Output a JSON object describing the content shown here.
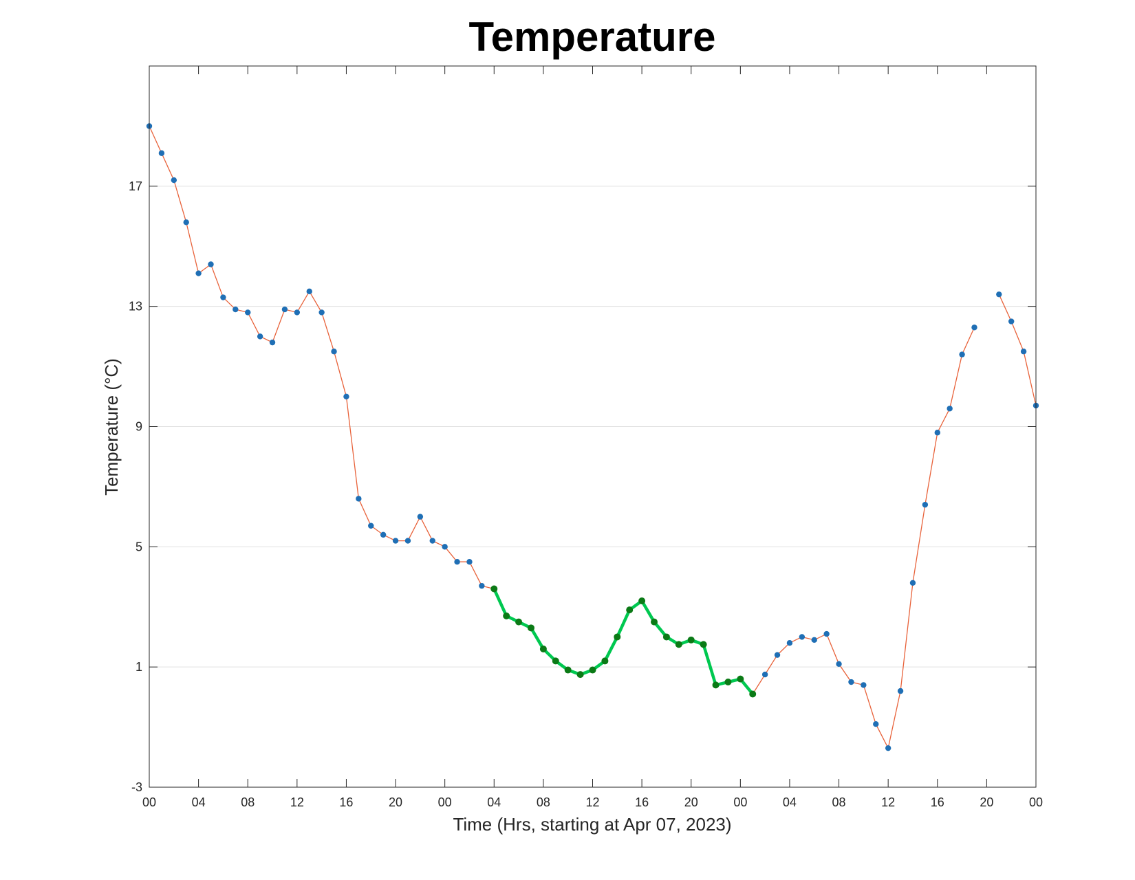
{
  "chart_data": {
    "type": "line",
    "title": "Temperature",
    "xlabel": "Time (Hrs, starting at Apr 07, 2023)",
    "ylabel": "Temperature (°C)",
    "xlim": [
      0,
      72
    ],
    "ylim": [
      -3,
      21
    ],
    "yticks": [
      -3,
      1,
      5,
      9,
      13,
      17
    ],
    "yticklabels": [
      "-3",
      "1",
      "5",
      "9",
      "13",
      "17"
    ],
    "xticks": [
      0,
      4,
      8,
      12,
      16,
      20,
      24,
      28,
      32,
      36,
      40,
      44,
      48,
      52,
      56,
      60,
      64,
      68,
      72
    ],
    "xticklabels": [
      "00",
      "04",
      "08",
      "12",
      "16",
      "20",
      "00",
      "04",
      "08",
      "12",
      "16",
      "20",
      "00",
      "04",
      "08",
      "12",
      "16",
      "20",
      "00"
    ],
    "grid": "horizontal",
    "colors": {
      "line": "#e8623a",
      "marker": "#1f6fb5",
      "highlight_line": "#00c850",
      "highlight_marker": "#0b7a16",
      "grid": "#e0e0e0",
      "axes": "#262626"
    },
    "series": [
      {
        "x": [
          0,
          1,
          2,
          3,
          4,
          5,
          6,
          7,
          8,
          9,
          10,
          11,
          12,
          13,
          14,
          15,
          16,
          17,
          18,
          19,
          20,
          21,
          22,
          23,
          24,
          25,
          26,
          27,
          28,
          29,
          30,
          31,
          32,
          33,
          34,
          35,
          36,
          37,
          38,
          39,
          40,
          41,
          42,
          43,
          44,
          45,
          46,
          47,
          48,
          49,
          50,
          51,
          52,
          53,
          54,
          55,
          56,
          57,
          58,
          59,
          60,
          61,
          62,
          63,
          64,
          65,
          66,
          67,
          68,
          69,
          70,
          71,
          72
        ],
        "y": [
          19.0,
          18.1,
          17.2,
          15.8,
          14.1,
          14.4,
          13.3,
          12.9,
          12.8,
          12.0,
          11.8,
          12.9,
          12.8,
          13.5,
          12.8,
          11.5,
          10.0,
          6.6,
          5.7,
          5.4,
          5.2,
          5.2,
          6.0,
          5.2,
          5.0,
          4.5,
          4.5,
          3.7,
          3.6,
          2.7,
          2.5,
          2.3,
          1.6,
          1.2,
          0.9,
          0.75,
          0.9,
          1.2,
          2.0,
          2.9,
          3.2,
          2.5,
          2.0,
          1.75,
          1.9,
          1.75,
          0.4,
          0.5,
          0.6,
          0.1,
          0.75,
          1.4,
          1.8,
          2.0,
          1.9,
          2.1,
          1.1,
          0.5,
          0.4,
          -0.9,
          -1.7,
          0.2,
          3.8,
          6.4,
          8.8,
          9.6,
          11.4,
          12.3,
          null,
          13.4,
          12.5,
          11.5,
          9.7
        ]
      }
    ],
    "highlight_range": [
      28,
      49
    ]
  }
}
